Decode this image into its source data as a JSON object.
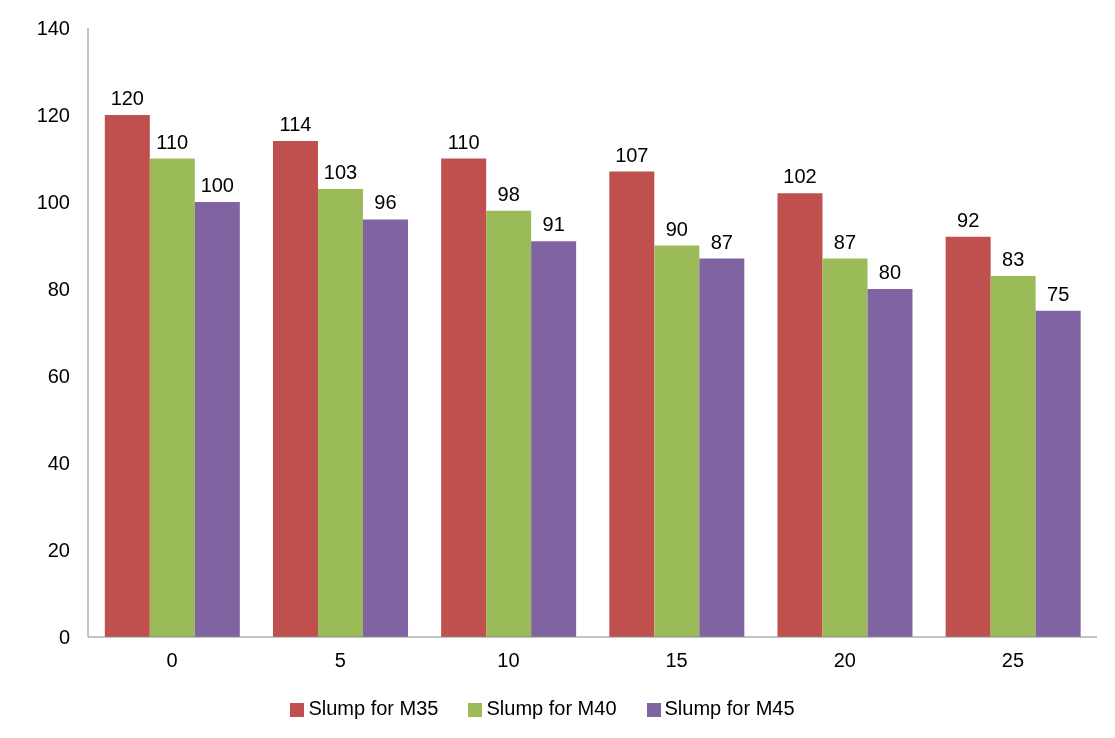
{
  "chart_data": {
    "type": "bar",
    "categories": [
      "0",
      "5",
      "10",
      "15",
      "20",
      "25"
    ],
    "series": [
      {
        "name": "Slump for M35",
        "color": "#c0504d",
        "values": [
          120,
          114,
          110,
          107,
          102,
          92
        ]
      },
      {
        "name": "Slump for M40",
        "color": "#9bbb59",
        "values": [
          110,
          103,
          98,
          90,
          87,
          83
        ]
      },
      {
        "name": "Slump for M45",
        "color": "#8064a2",
        "values": [
          100,
          96,
          91,
          87,
          80,
          75
        ]
      }
    ],
    "ylim": [
      0,
      140
    ],
    "yticks": [
      0,
      20,
      40,
      60,
      80,
      100,
      120,
      140
    ],
    "grid": false,
    "legend": "bottom",
    "data_labels": true
  }
}
